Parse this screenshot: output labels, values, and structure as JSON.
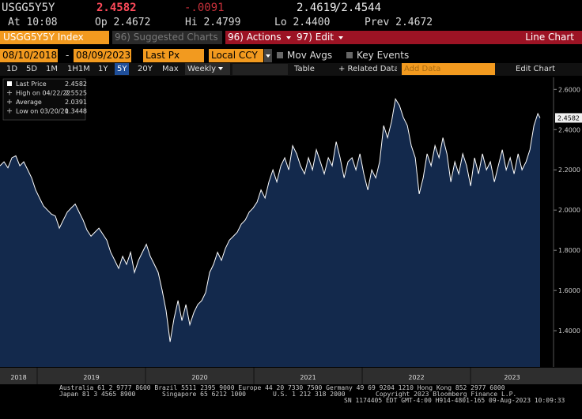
{
  "header": {
    "ticker": "USGG5Y5Y",
    "last": "2.4582",
    "change": "-.0091",
    "bid": "2.4619",
    "ask": "/2.4544",
    "time": "At 10:08",
    "open": "Op 2.4672",
    "high": "Hi 2.4799",
    "low": "Lo 2.4400",
    "prev": "Prev 2.4672"
  },
  "toolbar": {
    "security": "USGG5Y5Y Index",
    "suggested": "96) Suggested Charts",
    "actions": "96) Actions",
    "edit": "97) Edit",
    "chart_kind": "Line Chart",
    "start_date": "08/10/2018",
    "dash": "-",
    "end_date": "08/09/2023",
    "field": "Last Px",
    "currency": "Local CCY",
    "mov_avgs": "Mov Avgs",
    "key_events": "Key Events",
    "periods": [
      "1D",
      "5D",
      "1M",
      "1H1M",
      "1Y",
      "5Y",
      "20Y",
      "Max"
    ],
    "selected_period": "5Y",
    "frequency": "Weekly",
    "table": "Table",
    "related": "+ Related Data",
    "add_data": "Add Data",
    "edit_chart": "Edit Chart"
  },
  "chart_data": {
    "type": "line",
    "x": [
      2018.657,
      2018.694,
      2018.73,
      2018.767,
      2018.803,
      2018.84,
      2018.876,
      2018.913,
      2018.949,
      2018.986,
      2019.022,
      2019.059,
      2019.095,
      2019.132,
      2019.168,
      2019.205,
      2019.241,
      2019.278,
      2019.314,
      2019.351,
      2019.387,
      2019.424,
      2019.46,
      2019.497,
      2019.533,
      2019.57,
      2019.606,
      2019.643,
      2019.679,
      2019.716,
      2019.752,
      2019.789,
      2019.825,
      2019.862,
      2019.898,
      2019.935,
      2019.971,
      2020.008,
      2020.044,
      2020.081,
      2020.117,
      2020.154,
      2020.19,
      2020.227,
      2020.263,
      2020.3,
      2020.336,
      2020.373,
      2020.409,
      2020.446,
      2020.482,
      2020.519,
      2020.555,
      2020.592,
      2020.628,
      2020.665,
      2020.701,
      2020.738,
      2020.774,
      2020.811,
      2020.847,
      2020.884,
      2020.92,
      2020.957,
      2020.993,
      2021.03,
      2021.066,
      2021.103,
      2021.139,
      2021.176,
      2021.212,
      2021.249,
      2021.285,
      2021.322,
      2021.358,
      2021.395,
      2021.431,
      2021.468,
      2021.504,
      2021.541,
      2021.577,
      2021.614,
      2021.65,
      2021.687,
      2021.723,
      2021.76,
      2021.796,
      2021.833,
      2021.869,
      2021.906,
      2021.942,
      2021.979,
      2022.015,
      2022.052,
      2022.088,
      2022.125,
      2022.161,
      2022.198,
      2022.234,
      2022.271,
      2022.307,
      2022.344,
      2022.38,
      2022.417,
      2022.453,
      2022.49,
      2022.526,
      2022.563,
      2022.599,
      2022.636,
      2022.672,
      2022.709,
      2022.745,
      2022.782,
      2022.818,
      2022.855,
      2022.891,
      2022.928,
      2022.964,
      2023.001,
      2023.037,
      2023.074,
      2023.11,
      2023.147,
      2023.183,
      2023.22,
      2023.256,
      2023.293,
      2023.329,
      2023.366,
      2023.402,
      2023.439,
      2023.475,
      2023.512,
      2023.548,
      2023.585,
      2023.621,
      2023.642
    ],
    "series": [
      {
        "name": "Last Price",
        "color": "#ffffff",
        "values": [
          2.22,
          2.24,
          2.21,
          2.26,
          2.27,
          2.22,
          2.24,
          2.2,
          2.16,
          2.1,
          2.06,
          2.02,
          2.0,
          1.98,
          1.97,
          1.91,
          1.95,
          1.99,
          2.01,
          2.03,
          1.99,
          1.95,
          1.9,
          1.87,
          1.89,
          1.91,
          1.88,
          1.85,
          1.79,
          1.75,
          1.71,
          1.77,
          1.73,
          1.79,
          1.69,
          1.75,
          1.79,
          1.83,
          1.77,
          1.73,
          1.69,
          1.6,
          1.5,
          1.3448,
          1.46,
          1.55,
          1.45,
          1.53,
          1.43,
          1.49,
          1.53,
          1.55,
          1.59,
          1.69,
          1.73,
          1.79,
          1.75,
          1.81,
          1.85,
          1.87,
          1.89,
          1.93,
          1.95,
          1.99,
          2.01,
          2.04,
          2.1,
          2.06,
          2.14,
          2.2,
          2.14,
          2.22,
          2.26,
          2.2,
          2.32,
          2.28,
          2.22,
          2.18,
          2.26,
          2.2,
          2.3,
          2.24,
          2.18,
          2.26,
          2.22,
          2.34,
          2.26,
          2.16,
          2.24,
          2.26,
          2.2,
          2.28,
          2.18,
          2.1,
          2.2,
          2.16,
          2.24,
          2.42,
          2.36,
          2.44,
          2.5525,
          2.52,
          2.46,
          2.42,
          2.32,
          2.26,
          2.08,
          2.16,
          2.28,
          2.22,
          2.32,
          2.26,
          2.36,
          2.28,
          2.14,
          2.24,
          2.18,
          2.28,
          2.22,
          2.12,
          2.26,
          2.18,
          2.28,
          2.2,
          2.24,
          2.14,
          2.22,
          2.3,
          2.2,
          2.26,
          2.18,
          2.28,
          2.2,
          2.24,
          2.3,
          2.42,
          2.48,
          2.4582
        ]
      }
    ],
    "area_color": "#13294c",
    "xlim": [
      2018.657,
      2023.766
    ],
    "xticks": [
      {
        "value": 2018,
        "label": "2018"
      },
      {
        "value": 2019,
        "label": "2019"
      },
      {
        "value": 2020,
        "label": "2020"
      },
      {
        "value": 2021,
        "label": "2021"
      },
      {
        "value": 2022,
        "label": "2022"
      },
      {
        "value": 2023,
        "label": "2023"
      }
    ],
    "ylim": [
      1.22,
      2.66
    ],
    "yticks": [
      {
        "value": 1.4,
        "label": "1.4000"
      },
      {
        "value": 1.6,
        "label": "1.6000"
      },
      {
        "value": 1.8,
        "label": "1.8000"
      },
      {
        "value": 2.0,
        "label": "2.0000"
      },
      {
        "value": 2.2,
        "label": "2.2000"
      },
      {
        "value": 2.4,
        "label": "2.4000"
      },
      {
        "value": 2.6,
        "label": "2.6000"
      }
    ],
    "legend": [
      {
        "value": 2.4582
      },
      {
        "label": "High on 04/22/22",
        "value": 2.5525
      },
      {
        "label": "Average",
        "value": 2.0391
      },
      {
        "label": "Low on 03/20/20",
        "value": 1.3448
      }
    ]
  },
  "footer": {
    "line1": "Australia 61 2 9777 8600 Brazil 5511 2395 9000 Europe 44 20 7330 7500 Germany 49 69 9204 1210 Hong Kong 852 2977 6000",
    "japan": "Japan 81 3 4565 8900",
    "singapore": "Singapore 65 6212 1000",
    "us": "U.S. 1 212 318 2000",
    "copyright": "Copyright 2023 Bloomberg Finance L.P.",
    "session": "SN 1174405 EDT  GMT-4:00 H914-4801-165 09-Aug-2023 10:09:33"
  }
}
